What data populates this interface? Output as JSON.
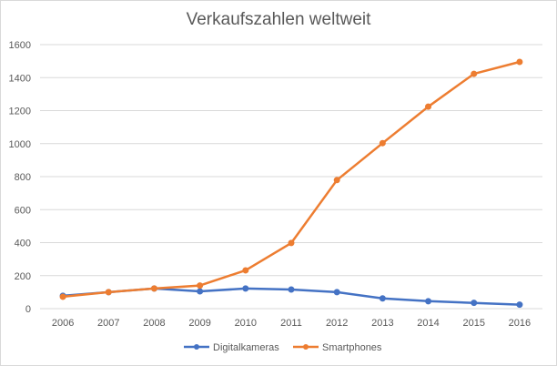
{
  "chart_data": {
    "type": "line",
    "title": "Verkaufszahlen weltweit",
    "xlabel": "",
    "ylabel": "",
    "categories": [
      "2006",
      "2007",
      "2008",
      "2009",
      "2010",
      "2011",
      "2012",
      "2013",
      "2014",
      "2015",
      "2016"
    ],
    "ylim": [
      0,
      1600
    ],
    "yticks": [
      "0",
      "200",
      "400",
      "600",
      "800",
      "1000",
      "1200",
      "1400",
      "1600"
    ],
    "grid": true,
    "legend_position": "bottom",
    "series": [
      {
        "name": "Digitalkameras",
        "color": "#4472c4",
        "values": [
          78,
          100,
          122,
          105,
          122,
          116,
          100,
          62,
          45,
          35,
          24
        ]
      },
      {
        "name": "Smartphones",
        "color": "#ed7d31",
        "values": [
          72,
          100,
          122,
          140,
          232,
          398,
          779,
          1003,
          1224,
          1423,
          1495
        ]
      }
    ]
  }
}
